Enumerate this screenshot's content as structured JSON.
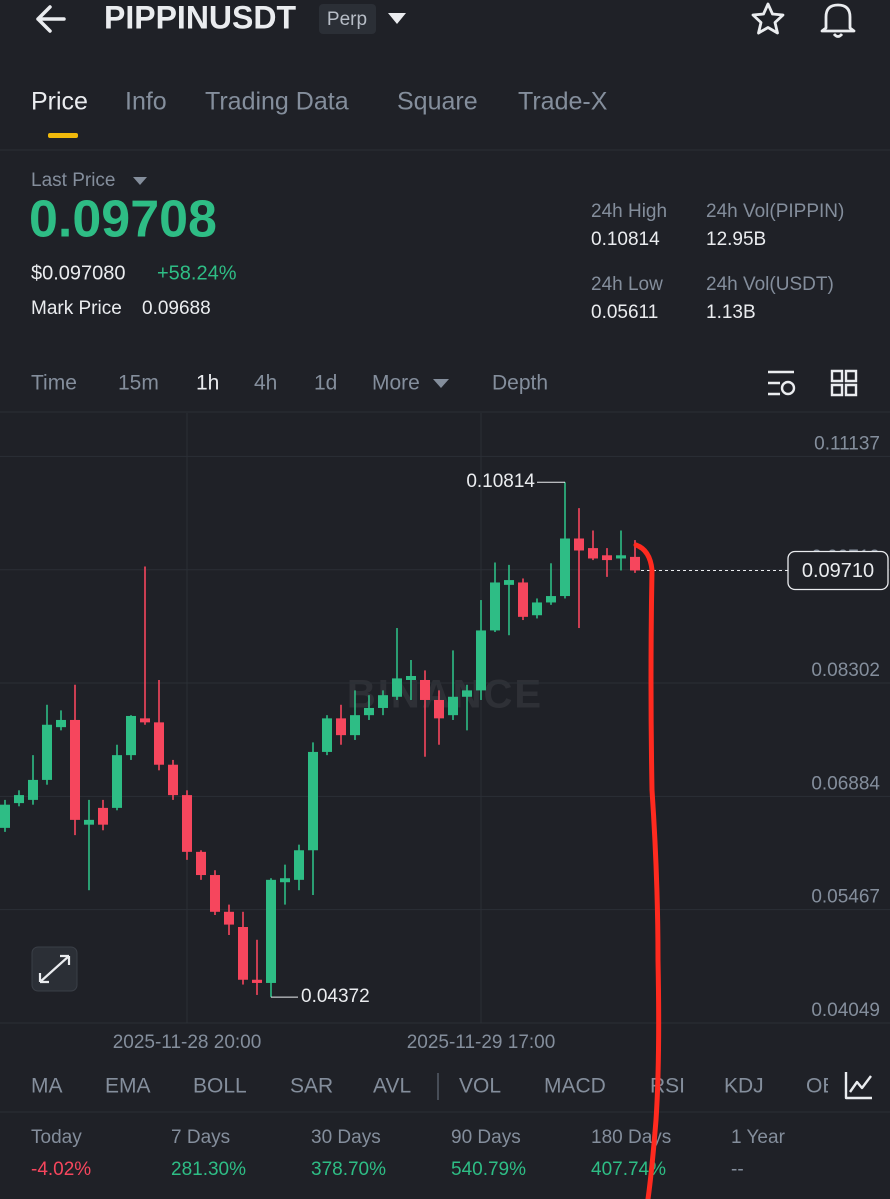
{
  "header": {
    "symbol": "PIPPINUSDT",
    "badge": "Perp"
  },
  "tabs": {
    "items": [
      "Price",
      "Info",
      "Trading Data",
      "Square",
      "Trade-X"
    ],
    "active": 0
  },
  "price": {
    "last_price_label": "Last Price",
    "last_price": "0.09708",
    "usd_price": "$0.097080",
    "change": "+58.24%",
    "mark_price_label": "Mark Price",
    "mark_price": "0.09688"
  },
  "stats": [
    {
      "label": "24h High",
      "value": "0.10814"
    },
    {
      "label": "24h Vol(PIPPIN)",
      "value": "12.95B"
    },
    {
      "label": "24h Low",
      "value": "0.05611"
    },
    {
      "label": "24h Vol(USDT)",
      "value": "1.13B"
    }
  ],
  "intervals": {
    "items": [
      "Time",
      "15m",
      "1h",
      "4h",
      "1d",
      "More",
      "Depth"
    ],
    "active": 2
  },
  "chart_data": {
    "type": "candlestick",
    "watermark": "BINANCE",
    "up_color": "#2ebd85",
    "down_color": "#f6465d",
    "categories": [
      null,
      null,
      null,
      null,
      null,
      null,
      null,
      null,
      null,
      null,
      null,
      null,
      null,
      "2025-11-28 20:00",
      null,
      null,
      null,
      null,
      null,
      null,
      null,
      null,
      null,
      null,
      null,
      null,
      null,
      null,
      null,
      null,
      null,
      null,
      null,
      null,
      "2025-11-29 17:00",
      null,
      null,
      null,
      null,
      null,
      null,
      null,
      null,
      null,
      null,
      null
    ],
    "open": [
      0.0649,
      0.068,
      0.0684,
      0.0709,
      0.0775,
      0.0784,
      0.0653,
      0.0674,
      0.0674,
      0.074,
      0.0786,
      0.0781,
      0.0728,
      0.069,
      0.0619,
      0.059,
      0.0544,
      0.0525,
      0.0459,
      0.0455,
      0.0581,
      0.0584,
      0.0621,
      0.0744,
      0.0786,
      0.0765,
      0.079,
      0.0799,
      0.0813,
      0.0834,
      0.0834,
      0.0809,
      0.079,
      0.0813,
      0.0821,
      0.0896,
      0.0953,
      0.0956,
      0.0915,
      0.0931,
      0.0939,
      0.1011,
      0.0999,
      0.099,
      0.0986,
      0.0988
    ],
    "high": [
      0.0684,
      0.0696,
      0.074,
      0.0803,
      0.0796,
      0.0828,
      0.0684,
      0.0684,
      0.0753,
      0.079,
      0.0976,
      0.0834,
      0.0734,
      0.0696,
      0.0621,
      0.0596,
      0.0553,
      0.0544,
      0.0509,
      0.0586,
      0.0603,
      0.0628,
      0.0756,
      0.079,
      0.0803,
      0.0821,
      0.0815,
      0.0821,
      0.0899,
      0.0859,
      0.0846,
      0.0821,
      0.0871,
      0.0828,
      0.0934,
      0.0981,
      0.0978,
      0.0961,
      0.0936,
      0.098,
      0.10814,
      0.1049,
      0.1021,
      0.0999,
      0.1021,
      0.1009
    ],
    "low": [
      0.0644,
      0.0676,
      0.0678,
      0.0703,
      0.0771,
      0.064,
      0.0571,
      0.0646,
      0.0671,
      0.0734,
      0.0778,
      0.0721,
      0.0684,
      0.0609,
      0.0584,
      0.054,
      0.0515,
      0.0453,
      0.044,
      0.04372,
      0.0553,
      0.0571,
      0.0565,
      0.074,
      0.0753,
      0.0759,
      0.0784,
      0.079,
      0.0809,
      0.0809,
      0.0738,
      0.0753,
      0.0784,
      0.0771,
      0.0809,
      0.0894,
      0.089,
      0.0909,
      0.0911,
      0.0928,
      0.0936,
      0.0899,
      0.0984,
      0.0963,
      0.0971,
      0.0968
    ],
    "close": [
      0.0678,
      0.069,
      0.0709,
      0.0778,
      0.0784,
      0.0659,
      0.0659,
      0.0653,
      0.074,
      0.0789,
      0.0781,
      0.0728,
      0.069,
      0.0619,
      0.059,
      0.0544,
      0.0528,
      0.0459,
      0.0455,
      0.0584,
      0.0586,
      0.0621,
      0.0744,
      0.0786,
      0.0765,
      0.079,
      0.0799,
      0.0815,
      0.0836,
      0.0839,
      0.0809,
      0.0786,
      0.0813,
      0.0821,
      0.0896,
      0.0956,
      0.0959,
      0.0913,
      0.0931,
      0.0939,
      0.1011,
      0.0996,
      0.0986,
      0.0984,
      0.099,
      0.0971
    ],
    "ylim": [
      0.04049,
      0.1168
    ],
    "yticks": [
      0.11137,
      0.09719,
      0.08302,
      0.06884,
      0.05467,
      0.04049
    ],
    "grid": true,
    "current_price": {
      "value": 0.0971,
      "label": "0.09710"
    }
  },
  "indicators": [
    "MA",
    "EMA",
    "BOLL",
    "SAR",
    "AVL",
    "VOL",
    "MACD",
    "RSI",
    "KDJ",
    "OBV"
  ],
  "performance": [
    {
      "label": "Today",
      "value": "-4.02%",
      "color": "#f6465d"
    },
    {
      "label": "7 Days",
      "value": "281.30%",
      "color": "#2ebd85"
    },
    {
      "label": "30 Days",
      "value": "378.70%",
      "color": "#2ebd85"
    },
    {
      "label": "90 Days",
      "value": "540.79%",
      "color": "#2ebd85"
    },
    {
      "label": "180 Days",
      "value": "407.74%",
      "color": "#2ebd85"
    },
    {
      "label": "1 Year",
      "value": "--",
      "color": "#848e9c"
    }
  ]
}
